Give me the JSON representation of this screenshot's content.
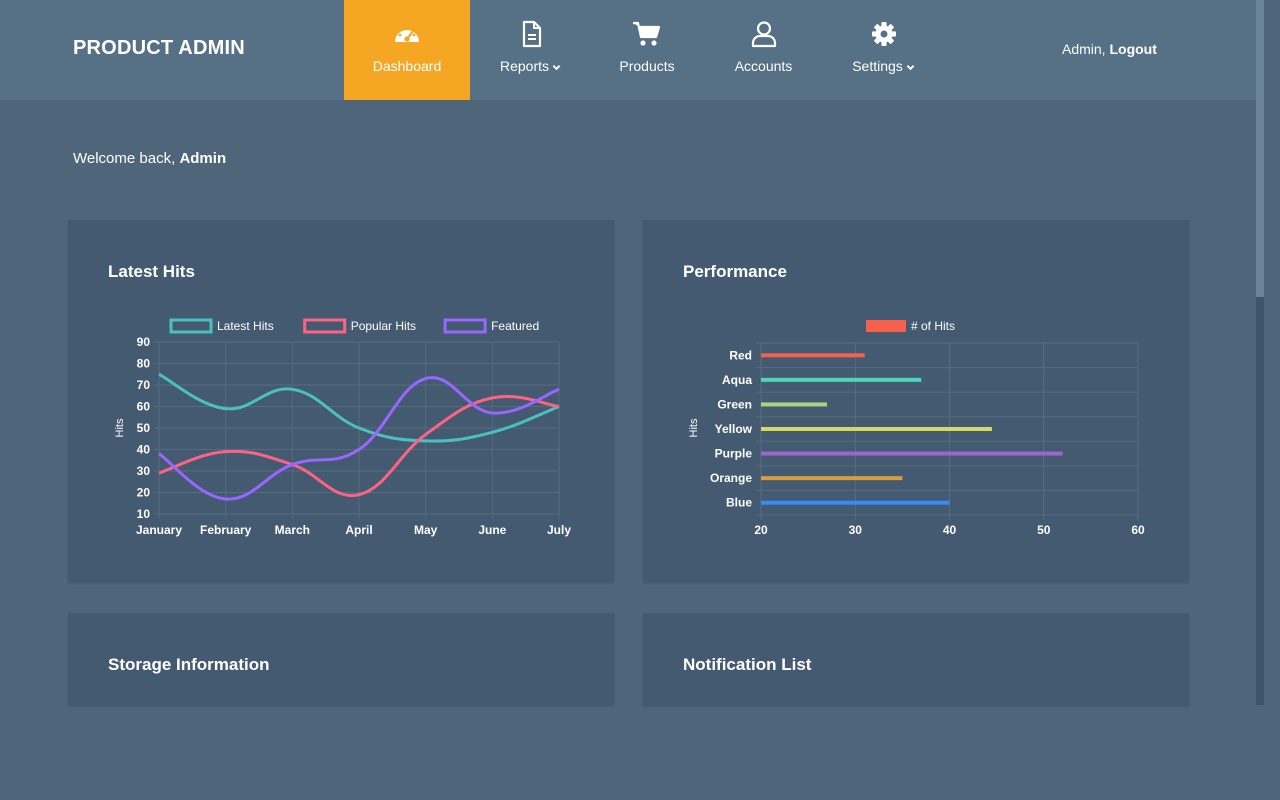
{
  "brand": "PRODUCT ADMIN",
  "nav": [
    {
      "label": "Dashboard",
      "icon": "tachometer-icon",
      "active": true,
      "dropdown": false
    },
    {
      "label": "Reports",
      "icon": "document-icon",
      "active": false,
      "dropdown": true
    },
    {
      "label": "Products",
      "icon": "cart-icon",
      "active": false,
      "dropdown": false
    },
    {
      "label": "Accounts",
      "icon": "user-icon",
      "active": false,
      "dropdown": false
    },
    {
      "label": "Settings",
      "icon": "gear-icon",
      "active": false,
      "dropdown": true
    }
  ],
  "user": {
    "name": "Admin,",
    "logout": "Logout"
  },
  "welcome": {
    "text": "Welcome back,",
    "name": "Admin"
  },
  "panels": {
    "latest_hits": "Latest Hits",
    "performance": "Performance",
    "storage": "Storage Information",
    "notifications": "Notification List"
  },
  "colors": {
    "accent": "#f5a623",
    "background": "#4e657a",
    "header": "#567086",
    "panel": "#435a71"
  },
  "chart_data": [
    {
      "type": "line",
      "categories": [
        "January",
        "February",
        "March",
        "April",
        "May",
        "June",
        "July"
      ],
      "ylabel": "Hits",
      "ylim": [
        10,
        90
      ],
      "yticks": [
        10,
        20,
        30,
        40,
        50,
        60,
        70,
        80,
        90
      ],
      "grid": true,
      "legend": "top",
      "series": [
        {
          "name": "Latest Hits",
          "color": "#4bc0c0",
          "values": [
            75,
            59,
            68,
            50,
            44,
            48,
            60
          ]
        },
        {
          "name": "Popular Hits",
          "color": "#ff6384",
          "values": [
            29,
            39,
            33,
            19,
            47,
            64,
            60
          ]
        },
        {
          "name": "Featured",
          "color": "#9966ff",
          "values": [
            38,
            17,
            33,
            40,
            73,
            57,
            68
          ]
        }
      ]
    },
    {
      "type": "bar",
      "orientation": "horizontal",
      "categories": [
        "Red",
        "Aqua",
        "Green",
        "Yellow",
        "Purple",
        "Orange",
        "Blue"
      ],
      "series": [
        {
          "name": "# of Hits",
          "color": "#f7604d",
          "values": [
            31,
            37,
            27,
            44.5,
            52,
            35,
            40
          ],
          "bar_colors": [
            "#f7604d",
            "#4ed6b8",
            "#a8d582",
            "#d7d768",
            "#9d66cc",
            "#db9c3f",
            "#3889fc"
          ]
        }
      ],
      "ylabel": "Hits",
      "xlim": [
        20,
        60
      ],
      "xticks": [
        20,
        30,
        40,
        50,
        60
      ],
      "grid": true,
      "legend": "top"
    }
  ]
}
